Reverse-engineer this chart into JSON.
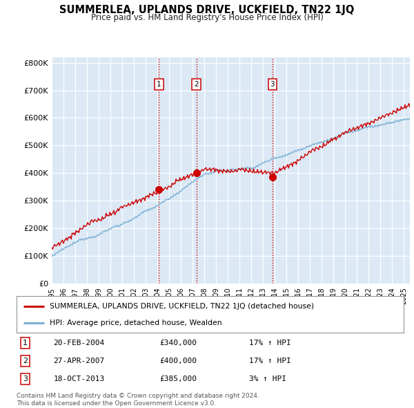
{
  "title": "SUMMERLEA, UPLANDS DRIVE, UCKFIELD, TN22 1JQ",
  "subtitle": "Price paid vs. HM Land Registry's House Price Index (HPI)",
  "background_color": "#ffffff",
  "plot_bg_color": "#dce9f5",
  "grid_color": "#ffffff",
  "sale_color": "#cc0000",
  "hpi_color": "#7aafd4",
  "vline_color": "#cc0000",
  "legend_sale_label": "SUMMERLEA, UPLANDS DRIVE, UCKFIELD, TN22 1JQ (detached house)",
  "legend_hpi_label": "HPI: Average price, detached house, Wealden",
  "transactions": [
    {
      "num": 1,
      "date": "20-FEB-2004",
      "price": "£340,000",
      "pct": "17%",
      "dir": "↑",
      "ref": "HPI",
      "year": 2004.13
    },
    {
      "num": 2,
      "date": "27-APR-2007",
      "price": "£400,000",
      "pct": "17%",
      "dir": "↑",
      "ref": "HPI",
      "year": 2007.32
    },
    {
      "num": 3,
      "date": "18-OCT-2013",
      "price": "£385,000",
      "pct": "3%",
      "dir": "↑",
      "ref": "HPI",
      "year": 2013.8
    }
  ],
  "footer1": "Contains HM Land Registry data © Crown copyright and database right 2024.",
  "footer2": "This data is licensed under the Open Government Licence v3.0.",
  "sale_points": [
    {
      "year": 2004.13,
      "value": 340000
    },
    {
      "year": 2007.32,
      "value": 400000
    },
    {
      "year": 2013.8,
      "value": 385000
    }
  ],
  "x_start": 1995.0,
  "x_end": 2025.5,
  "ylim": [
    0,
    820000
  ],
  "yticks": [
    0,
    100000,
    200000,
    300000,
    400000,
    500000,
    600000,
    700000,
    800000
  ],
  "ytick_labels": [
    "£0",
    "£100K",
    "£200K",
    "£300K",
    "£400K",
    "£500K",
    "£600K",
    "£700K",
    "£800K"
  ],
  "xticks": [
    1995,
    1996,
    1997,
    1998,
    1999,
    2000,
    2001,
    2002,
    2003,
    2004,
    2005,
    2006,
    2007,
    2008,
    2009,
    2010,
    2011,
    2012,
    2013,
    2014,
    2015,
    2016,
    2017,
    2018,
    2019,
    2020,
    2021,
    2022,
    2023,
    2024,
    2025
  ]
}
